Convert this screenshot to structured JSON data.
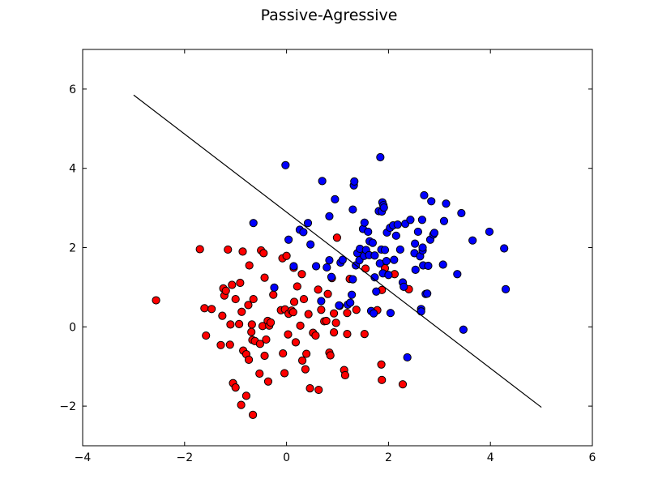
{
  "chart_data": {
    "type": "scatter",
    "title": "Passive-Agressive",
    "xlabel": "",
    "ylabel": "",
    "xlim": [
      -4,
      6
    ],
    "ylim": [
      -3,
      7
    ],
    "xticks": [
      -4,
      -2,
      0,
      2,
      4,
      6
    ],
    "yticks": [
      -2,
      0,
      2,
      4,
      6
    ],
    "xtick_labels": [
      "−4",
      "−2",
      "0",
      "2",
      "4",
      "6"
    ],
    "ytick_labels": [
      "−2",
      "0",
      "2",
      "4",
      "6"
    ],
    "grid": false,
    "decision_line": {
      "x": [
        -3.0,
        5.0
      ],
      "y": [
        5.85,
        -2.03
      ],
      "color": "#000000"
    },
    "series": [
      {
        "color": "#ff0000",
        "points": [
          [
            -2.56,
            0.67
          ],
          [
            -1.7,
            1.96
          ],
          [
            -1.61,
            0.47
          ],
          [
            -1.58,
            -0.22
          ],
          [
            -1.47,
            0.45
          ],
          [
            -1.29,
            -0.46
          ],
          [
            -1.26,
            0.28
          ],
          [
            -1.24,
            0.97
          ],
          [
            -1.22,
            0.79
          ],
          [
            -1.19,
            0.91
          ],
          [
            -1.15,
            1.95
          ],
          [
            -1.11,
            -0.45
          ],
          [
            -1.1,
            0.06
          ],
          [
            -1.07,
            1.06
          ],
          [
            -1.05,
            -1.42
          ],
          [
            -1.0,
            -1.53
          ],
          [
            -1.0,
            0.7
          ],
          [
            -0.93,
            0.07
          ],
          [
            -0.91,
            1.11
          ],
          [
            -0.89,
            -1.97
          ],
          [
            -0.88,
            0.38
          ],
          [
            -0.86,
            1.9
          ],
          [
            -0.85,
            -0.6
          ],
          [
            -0.79,
            -0.69
          ],
          [
            -0.79,
            -1.74
          ],
          [
            -0.75,
            0.55
          ],
          [
            -0.74,
            -0.83
          ],
          [
            -0.73,
            1.55
          ],
          [
            -0.69,
            -0.13
          ],
          [
            -0.68,
            0.06
          ],
          [
            -0.67,
            -0.33
          ],
          [
            -0.66,
            -2.22
          ],
          [
            -0.65,
            0.7
          ],
          [
            -0.62,
            -0.36
          ],
          [
            -0.53,
            -1.18
          ],
          [
            -0.52,
            -0.43
          ],
          [
            -0.5,
            1.93
          ],
          [
            -0.47,
            0.02
          ],
          [
            -0.45,
            1.86
          ],
          [
            -0.43,
            -0.73
          ],
          [
            -0.43,
            1.24
          ],
          [
            -0.4,
            -0.32
          ],
          [
            -0.37,
            0.15
          ],
          [
            -0.36,
            -1.38
          ],
          [
            -0.34,
            0.03
          ],
          [
            -0.31,
            0.11
          ],
          [
            -0.26,
            0.81
          ],
          [
            -0.11,
            0.42
          ],
          [
            -0.08,
            1.73
          ],
          [
            -0.07,
            -0.67
          ],
          [
            -0.04,
            -1.17
          ],
          [
            -0.03,
            0.44
          ],
          [
            0.0,
            1.79
          ],
          [
            0.03,
            -0.19
          ],
          [
            0.04,
            0.33
          ],
          [
            0.1,
            0.41
          ],
          [
            0.13,
            0.37
          ],
          [
            0.14,
            1.49
          ],
          [
            0.15,
            0.63
          ],
          [
            0.18,
            -0.39
          ],
          [
            0.21,
            1.02
          ],
          [
            0.27,
            0.03
          ],
          [
            0.3,
            1.33
          ],
          [
            0.31,
            -0.85
          ],
          [
            0.34,
            0.7
          ],
          [
            0.37,
            -1.07
          ],
          [
            0.39,
            -0.68
          ],
          [
            0.43,
            0.32
          ],
          [
            0.46,
            -1.55
          ],
          [
            0.52,
            -0.15
          ],
          [
            0.57,
            -0.22
          ],
          [
            0.62,
            0.94
          ],
          [
            0.63,
            -1.59
          ],
          [
            0.68,
            0.43
          ],
          [
            0.74,
            0.14
          ],
          [
            0.78,
            0.15
          ],
          [
            0.81,
            0.83
          ],
          [
            0.84,
            -0.65
          ],
          [
            0.86,
            -0.72
          ],
          [
            0.89,
            1.23
          ],
          [
            0.93,
            -0.14
          ],
          [
            0.93,
            0.34
          ],
          [
            0.97,
            0.1
          ],
          [
            0.99,
            2.25
          ],
          [
            1.04,
            0.53
          ],
          [
            1.13,
            -1.09
          ],
          [
            1.15,
            -1.22
          ],
          [
            1.19,
            -0.18
          ],
          [
            1.19,
            0.35
          ],
          [
            1.24,
            1.21
          ],
          [
            1.37,
            0.43
          ],
          [
            1.53,
            -0.18
          ],
          [
            1.55,
            1.47
          ],
          [
            1.78,
            0.42
          ],
          [
            1.86,
            -0.95
          ],
          [
            1.87,
            -1.34
          ],
          [
            1.87,
            0.93
          ],
          [
            1.93,
            1.48
          ],
          [
            2.12,
            1.33
          ],
          [
            2.28,
            -1.45
          ],
          [
            2.4,
            0.95
          ]
        ]
      },
      {
        "color": "#0000ff",
        "points": [
          [
            -0.65,
            2.62
          ],
          [
            -0.24,
            0.99
          ],
          [
            -0.02,
            4.08
          ],
          [
            0.04,
            2.2
          ],
          [
            0.14,
            1.53
          ],
          [
            0.26,
            2.45
          ],
          [
            0.33,
            2.39
          ],
          [
            0.42,
            2.62
          ],
          [
            0.47,
            2.08
          ],
          [
            0.58,
            1.53
          ],
          [
            0.68,
            0.65
          ],
          [
            0.7,
            3.68
          ],
          [
            0.79,
            1.5
          ],
          [
            0.84,
            2.79
          ],
          [
            0.84,
            1.68
          ],
          [
            0.88,
            1.26
          ],
          [
            0.95,
            3.22
          ],
          [
            1.03,
            0.54
          ],
          [
            1.06,
            1.62
          ],
          [
            1.1,
            1.69
          ],
          [
            1.2,
            0.56
          ],
          [
            1.25,
            0.61
          ],
          [
            1.28,
            0.81
          ],
          [
            1.3,
            1.2
          ],
          [
            1.3,
            2.96
          ],
          [
            1.32,
            3.57
          ],
          [
            1.33,
            3.67
          ],
          [
            1.36,
            1.55
          ],
          [
            1.39,
            1.86
          ],
          [
            1.43,
            1.68
          ],
          [
            1.44,
            1.97
          ],
          [
            1.5,
            2.47
          ],
          [
            1.52,
            1.79
          ],
          [
            1.53,
            2.63
          ],
          [
            1.56,
            1.94
          ],
          [
            1.6,
            2.4
          ],
          [
            1.62,
            1.81
          ],
          [
            1.63,
            2.16
          ],
          [
            1.66,
            0.4
          ],
          [
            1.69,
            2.12
          ],
          [
            1.71,
            0.34
          ],
          [
            1.73,
            1.8
          ],
          [
            1.73,
            1.25
          ],
          [
            1.76,
            0.89
          ],
          [
            1.81,
            2.92
          ],
          [
            1.83,
            1.6
          ],
          [
            1.84,
            4.28
          ],
          [
            1.86,
            1.95
          ],
          [
            1.87,
            2.91
          ],
          [
            1.88,
            3.14
          ],
          [
            1.89,
            1.35
          ],
          [
            1.9,
            3.07
          ],
          [
            1.91,
            3.01
          ],
          [
            1.93,
            1.94
          ],
          [
            1.96,
            1.66
          ],
          [
            1.97,
            2.38
          ],
          [
            2.0,
            1.31
          ],
          [
            2.03,
            2.5
          ],
          [
            2.04,
            0.35
          ],
          [
            2.09,
            2.56
          ],
          [
            2.11,
            1.69
          ],
          [
            2.15,
            2.3
          ],
          [
            2.18,
            2.58
          ],
          [
            2.23,
            1.95
          ],
          [
            2.28,
            1.12
          ],
          [
            2.3,
            1.01
          ],
          [
            2.33,
            2.6
          ],
          [
            2.37,
            -0.77
          ],
          [
            2.43,
            2.7
          ],
          [
            2.51,
            1.86
          ],
          [
            2.52,
            2.1
          ],
          [
            2.53,
            1.44
          ],
          [
            2.58,
            2.4
          ],
          [
            2.62,
            1.78
          ],
          [
            2.64,
            0.45
          ],
          [
            2.64,
            0.39
          ],
          [
            2.66,
            2.7
          ],
          [
            2.67,
            1.93
          ],
          [
            2.67,
            2.0
          ],
          [
            2.68,
            1.55
          ],
          [
            2.7,
            3.32
          ],
          [
            2.73,
            0.83
          ],
          [
            2.76,
            0.84
          ],
          [
            2.78,
            1.54
          ],
          [
            2.82,
            2.2
          ],
          [
            2.84,
            3.17
          ],
          [
            2.88,
            2.33
          ],
          [
            2.9,
            2.37
          ],
          [
            3.07,
            1.57
          ],
          [
            3.09,
            2.67
          ],
          [
            3.13,
            3.11
          ],
          [
            3.35,
            1.33
          ],
          [
            3.43,
            2.87
          ],
          [
            3.47,
            -0.07
          ],
          [
            3.65,
            2.18
          ],
          [
            3.98,
            2.4
          ],
          [
            4.27,
            1.98
          ],
          [
            4.3,
            0.95
          ]
        ]
      }
    ]
  }
}
